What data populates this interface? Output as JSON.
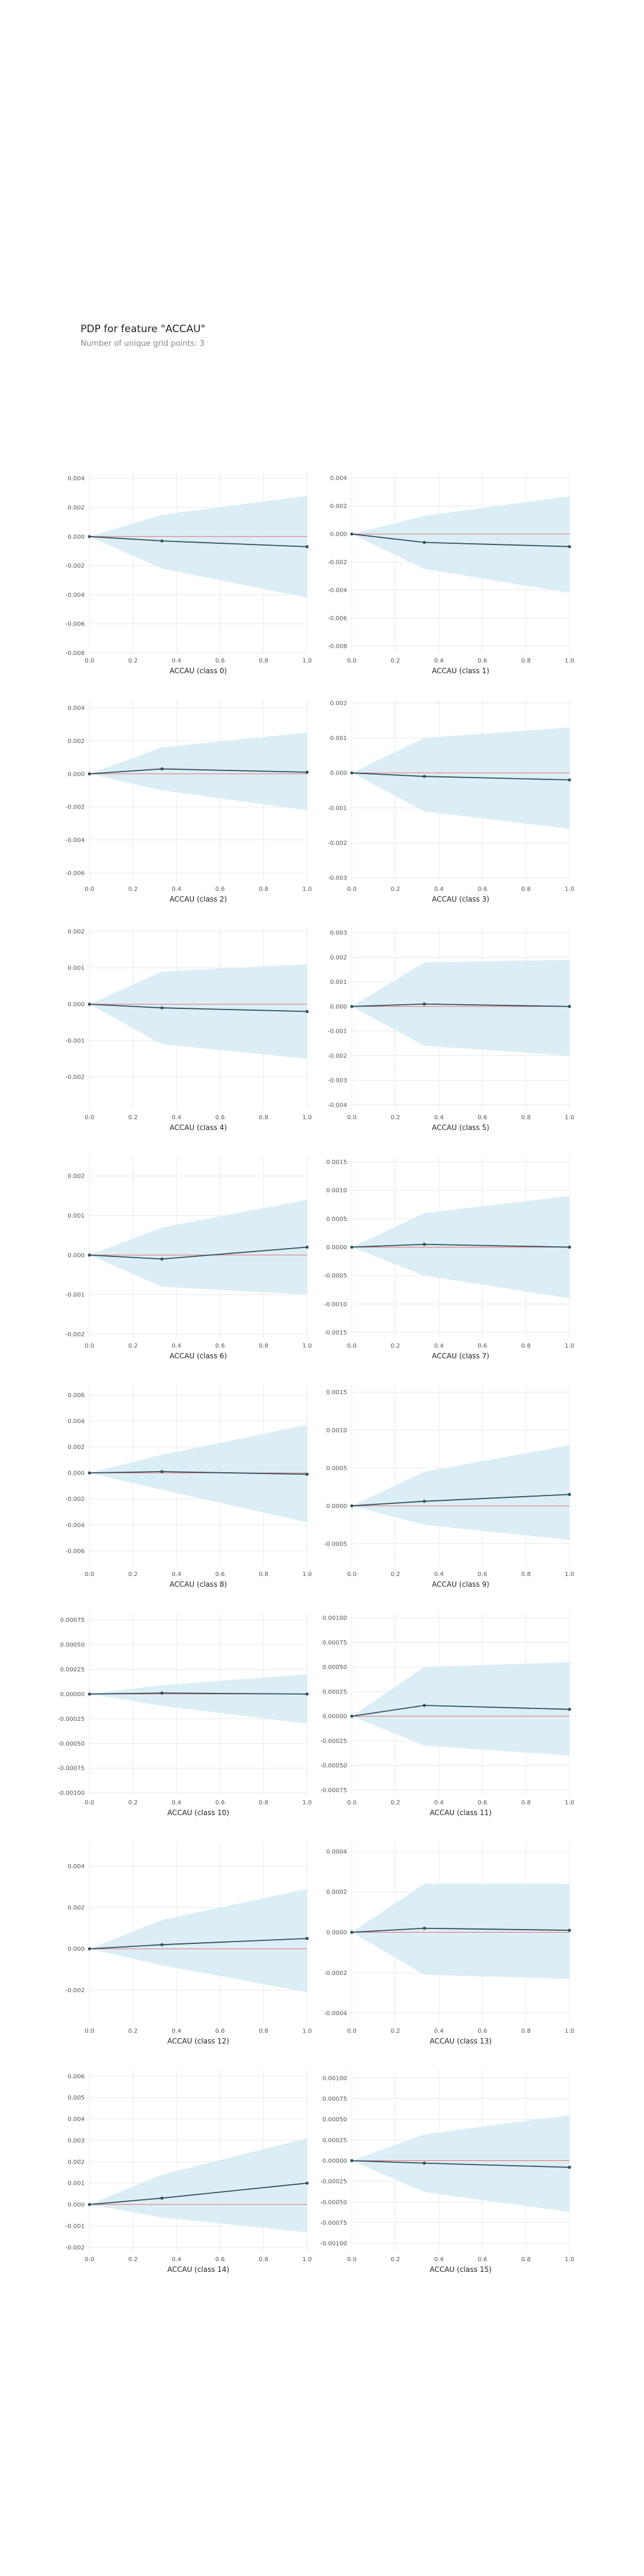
{
  "header": {
    "title": "PDP for feature \"ACCAU\"",
    "subtitle": "Number of unique grid points: 3"
  },
  "colors": {
    "band": "#d8ecf4",
    "line": "#2f4f5f",
    "zero_line": "#e07070",
    "grid": "#e8e8e8",
    "axis_text": "#555555"
  },
  "chart_data": [
    {
      "type": "line",
      "xlabel": "ACCAU (class 0)",
      "x": [
        0,
        0.333,
        1
      ],
      "y": [
        0,
        -0.0003,
        -0.0007
      ],
      "upper": [
        0,
        0.0015,
        0.0028
      ],
      "lower": [
        0,
        -0.0022,
        -0.0042
      ],
      "ylim": [
        -0.008,
        0.0045
      ],
      "yticks": [
        0.004,
        0.002,
        0.0,
        -0.002,
        -0.004,
        -0.006,
        -0.008
      ],
      "ytick_labels": [
        "0.004",
        "0.002",
        "0.000",
        "-0.002",
        "-0.004",
        "-0.006",
        "-0.008"
      ],
      "xticks": [
        "0.0",
        "0.2",
        "0.4",
        "0.6",
        "0.8",
        "1.0"
      ]
    },
    {
      "type": "line",
      "xlabel": "ACCAU (class 1)",
      "x": [
        0,
        0.333,
        1
      ],
      "y": [
        0,
        -0.0006,
        -0.0009
      ],
      "upper": [
        0,
        0.0013,
        0.0027
      ],
      "lower": [
        0,
        -0.0025,
        -0.0042
      ],
      "ylim": [
        -0.0085,
        0.0045
      ],
      "yticks": [
        0.004,
        0.002,
        0.0,
        -0.002,
        -0.004,
        -0.006,
        -0.008
      ],
      "ytick_labels": [
        "0.004",
        "0.002",
        "0.000",
        "-0.002",
        "-0.004",
        "-0.006",
        "-0.008"
      ],
      "xticks": [
        "0.0",
        "0.2",
        "0.4",
        "0.6",
        "0.8",
        "1.0"
      ]
    },
    {
      "type": "line",
      "xlabel": "ACCAU (class 2)",
      "x": [
        0,
        0.333,
        1
      ],
      "y": [
        0,
        0.0003,
        0.0001
      ],
      "upper": [
        0,
        0.0016,
        0.0025
      ],
      "lower": [
        0,
        -0.001,
        -0.0022
      ],
      "ylim": [
        -0.0065,
        0.0045
      ],
      "yticks": [
        0.004,
        0.002,
        0.0,
        -0.002,
        -0.004,
        -0.006
      ],
      "ytick_labels": [
        "0.004",
        "0.002",
        "0.000",
        "-0.002",
        "-0.004",
        "-0.006"
      ],
      "xticks": [
        "0.0",
        "0.2",
        "0.4",
        "0.6",
        "0.8",
        "1.0"
      ]
    },
    {
      "type": "line",
      "xlabel": "ACCAU (class 3)",
      "x": [
        0,
        0.333,
        1
      ],
      "y": [
        0,
        -0.0001,
        -0.0002
      ],
      "upper": [
        0,
        0.001,
        0.0013
      ],
      "lower": [
        0,
        -0.0011,
        -0.0016
      ],
      "ylim": [
        -0.0031,
        0.0021
      ],
      "yticks": [
        0.002,
        0.001,
        0.0,
        -0.001,
        -0.002,
        -0.003
      ],
      "ytick_labels": [
        "0.002",
        "0.001",
        "0.000",
        "-0.001",
        "-0.002",
        "-0.003"
      ],
      "xticks": [
        "0.0",
        "0.2",
        "0.4",
        "0.6",
        "0.8",
        "1.0"
      ]
    },
    {
      "type": "line",
      "xlabel": "ACCAU (class 4)",
      "x": [
        0,
        0.333,
        1
      ],
      "y": [
        0,
        -0.0001,
        -0.0002
      ],
      "upper": [
        0,
        0.0009,
        0.0011
      ],
      "lower": [
        0,
        -0.0011,
        -0.0015
      ],
      "ylim": [
        -0.0029,
        0.0021
      ],
      "yticks": [
        0.002,
        0.001,
        0.0,
        -0.001,
        -0.002
      ],
      "ytick_labels": [
        "0.002",
        "0.001",
        "0.000",
        "-0.001",
        "-0.002"
      ],
      "xticks": [
        "0.0",
        "0.2",
        "0.4",
        "0.6",
        "0.8",
        "1.0"
      ]
    },
    {
      "type": "line",
      "xlabel": "ACCAU (class 5)",
      "x": [
        0,
        0.333,
        1
      ],
      "y": [
        0,
        0.0001,
        0.0
      ],
      "upper": [
        0,
        0.0018,
        0.0019
      ],
      "lower": [
        0,
        -0.0016,
        -0.002
      ],
      "ylim": [
        -0.0042,
        0.0032
      ],
      "yticks": [
        0.003,
        0.002,
        0.001,
        0.0,
        -0.001,
        -0.002,
        -0.003,
        -0.004
      ],
      "ytick_labels": [
        "0.003",
        "0.002",
        "0.001",
        "0.000",
        "-0.001",
        "-0.002",
        "-0.003",
        "-0.004"
      ],
      "xticks": [
        "0.0",
        "0.2",
        "0.4",
        "0.6",
        "0.8",
        "1.0"
      ]
    },
    {
      "type": "line",
      "xlabel": "ACCAU (class 6)",
      "x": [
        0,
        0.333,
        1
      ],
      "y": [
        0,
        -0.0001,
        0.0002
      ],
      "upper": [
        0,
        0.0007,
        0.0014
      ],
      "lower": [
        0,
        -0.0008,
        -0.001
      ],
      "ylim": [
        -0.0021,
        0.0025
      ],
      "yticks": [
        0.002,
        0.001,
        0.0,
        -0.001,
        -0.002
      ],
      "ytick_labels": [
        "0.002",
        "0.001",
        "0.000",
        "-0.001",
        "-0.002"
      ],
      "xticks": [
        "0.0",
        "0.2",
        "0.4",
        "0.6",
        "0.8",
        "1.0"
      ]
    },
    {
      "type": "line",
      "xlabel": "ACCAU (class 7)",
      "x": [
        0,
        0.333,
        1
      ],
      "y": [
        0,
        5e-05,
        0.0
      ],
      "upper": [
        0,
        0.0006,
        0.0009
      ],
      "lower": [
        0,
        -0.0005,
        -0.0009
      ],
      "ylim": [
        -0.0016,
        0.0016
      ],
      "yticks": [
        0.0015,
        0.001,
        0.0005,
        0.0,
        -0.0005,
        -0.001,
        -0.0015
      ],
      "ytick_labels": [
        "0.0015",
        "0.0010",
        "0.0005",
        "0.0000",
        "-0.0005",
        "-0.0010",
        "-0.0015"
      ],
      "xticks": [
        "0.0",
        "0.2",
        "0.4",
        "0.6",
        "0.8",
        "1.0"
      ]
    },
    {
      "type": "line",
      "xlabel": "ACCAU (class 8)",
      "x": [
        0,
        0.333,
        1
      ],
      "y": [
        0,
        0.0001,
        -0.0001
      ],
      "upper": [
        0,
        0.0014,
        0.0037
      ],
      "lower": [
        0,
        -0.0013,
        -0.0038
      ],
      "ylim": [
        -0.0072,
        0.0068
      ],
      "yticks": [
        0.006,
        0.004,
        0.002,
        0.0,
        -0.002,
        -0.004,
        -0.006
      ],
      "ytick_labels": [
        "0.006",
        "0.004",
        "0.002",
        "0.000",
        "-0.002",
        "-0.004",
        "-0.006"
      ],
      "xticks": [
        "0.0",
        "0.2",
        "0.4",
        "0.6",
        "0.8",
        "1.0"
      ]
    },
    {
      "type": "line",
      "xlabel": "ACCAU (class 9)",
      "x": [
        0,
        0.333,
        1
      ],
      "y": [
        0,
        6e-05,
        0.00015
      ],
      "upper": [
        0,
        0.00045,
        0.0008
      ],
      "lower": [
        0,
        -0.00025,
        -0.00045
      ],
      "ylim": [
        -0.0008,
        0.0016
      ],
      "yticks": [
        0.0015,
        0.001,
        0.0005,
        0.0,
        -0.0005
      ],
      "ytick_labels": [
        "0.0015",
        "0.0010",
        "0.0005",
        "0.0000",
        "-0.0005"
      ],
      "xticks": [
        "0.0",
        "0.2",
        "0.4",
        "0.6",
        "0.8",
        "1.0"
      ]
    },
    {
      "type": "line",
      "xlabel": "ACCAU (class 10)",
      "x": [
        0,
        0.333,
        1
      ],
      "y": [
        0,
        1e-05,
        0.0
      ],
      "upper": [
        0,
        9e-05,
        0.0002
      ],
      "lower": [
        0,
        -0.00012,
        -0.0003
      ],
      "ylim": [
        -0.00102,
        0.00082
      ],
      "yticks": [
        0.00075,
        0.0005,
        0.00025,
        0.0,
        -0.00025,
        -0.0005,
        -0.00075,
        -0.001
      ],
      "ytick_labels": [
        "0.00075",
        "0.00050",
        "0.00025",
        "0.00000",
        "-0.00025",
        "-0.00050",
        "-0.00075",
        "-0.00100"
      ],
      "xticks": [
        "0.0",
        "0.2",
        "0.4",
        "0.6",
        "0.8",
        "1.0"
      ]
    },
    {
      "type": "line",
      "xlabel": "ACCAU (class 11)",
      "x": [
        0,
        0.333,
        1
      ],
      "y": [
        0,
        0.00011,
        7e-05
      ],
      "upper": [
        0,
        0.0005,
        0.00055
      ],
      "lower": [
        0,
        -0.0003,
        -0.0004
      ],
      "ylim": [
        -0.0008,
        0.00105
      ],
      "yticks": [
        0.001,
        0.00075,
        0.0005,
        0.00025,
        0.0,
        -0.00025,
        -0.0005,
        -0.00075
      ],
      "ytick_labels": [
        "0.00100",
        "0.00075",
        "0.00050",
        "0.00025",
        "0.00000",
        "-0.00025",
        "-0.00050",
        "-0.00075"
      ],
      "xticks": [
        "0.0",
        "0.2",
        "0.4",
        "0.6",
        "0.8",
        "1.0"
      ]
    },
    {
      "type": "line",
      "xlabel": "ACCAU (class 12)",
      "x": [
        0,
        0.333,
        1
      ],
      "y": [
        0,
        0.0002,
        0.0005
      ],
      "upper": [
        0,
        0.0014,
        0.0029
      ],
      "lower": [
        0,
        -0.0008,
        -0.0021
      ],
      "ylim": [
        -0.0036,
        0.0052
      ],
      "yticks": [
        0.004,
        0.002,
        0.0,
        -0.002
      ],
      "ytick_labels": [
        "0.004",
        "0.002",
        "0.000",
        "-0.002"
      ],
      "xticks": [
        "0.0",
        "0.2",
        "0.4",
        "0.6",
        "0.8",
        "1.0"
      ]
    },
    {
      "type": "line",
      "xlabel": "ACCAU (class 13)",
      "x": [
        0,
        0.333,
        1
      ],
      "y": [
        0,
        2e-05,
        1e-05
      ],
      "upper": [
        0,
        0.00024,
        0.00024
      ],
      "lower": [
        0,
        -0.00021,
        -0.00023
      ],
      "ylim": [
        -0.00045,
        0.00045
      ],
      "yticks": [
        0.0004,
        0.0002,
        0.0,
        -0.0002,
        -0.0004
      ],
      "ytick_labels": [
        "0.0004",
        "0.0002",
        "0.0000",
        "-0.0002",
        "-0.0004"
      ],
      "xticks": [
        "0.0",
        "0.2",
        "0.4",
        "0.6",
        "0.8",
        "1.0"
      ]
    },
    {
      "type": "line",
      "xlabel": "ACCAU (class 14)",
      "x": [
        0,
        0.333,
        1
      ],
      "y": [
        0,
        0.0003,
        0.001
      ],
      "upper": [
        0,
        0.0014,
        0.0031
      ],
      "lower": [
        0,
        -0.0006,
        -0.0013
      ],
      "ylim": [
        -0.0022,
        0.0063
      ],
      "yticks": [
        0.006,
        0.005,
        0.004,
        0.003,
        0.002,
        0.001,
        0.0,
        -0.001,
        -0.002
      ],
      "ytick_labels": [
        "0.006",
        "0.005",
        "0.004",
        "0.003",
        "0.002",
        "0.001",
        "0.000",
        "-0.001",
        "-0.002"
      ],
      "xticks": [
        "0.0",
        "0.2",
        "0.4",
        "0.6",
        "0.8",
        "1.0"
      ]
    },
    {
      "type": "line",
      "xlabel": "ACCAU (class 15)",
      "x": [
        0,
        0.333,
        1
      ],
      "y": [
        0,
        -3e-05,
        -8e-05
      ],
      "upper": [
        0,
        0.00032,
        0.00055
      ],
      "lower": [
        0,
        -0.00038,
        -0.00062
      ],
      "ylim": [
        -0.0011,
        0.0011
      ],
      "yticks": [
        0.001,
        0.00075,
        0.0005,
        0.00025,
        0.0,
        -0.00025,
        -0.0005,
        -0.00075,
        -0.001
      ],
      "ytick_labels": [
        "0.00100",
        "0.00075",
        "0.00050",
        "0.00025",
        "0.00000",
        "-0.00025",
        "-0.00050",
        "-0.00075",
        "-0.00100"
      ],
      "xticks": [
        "0.0",
        "0.2",
        "0.4",
        "0.6",
        "0.8",
        "1.0"
      ]
    }
  ]
}
